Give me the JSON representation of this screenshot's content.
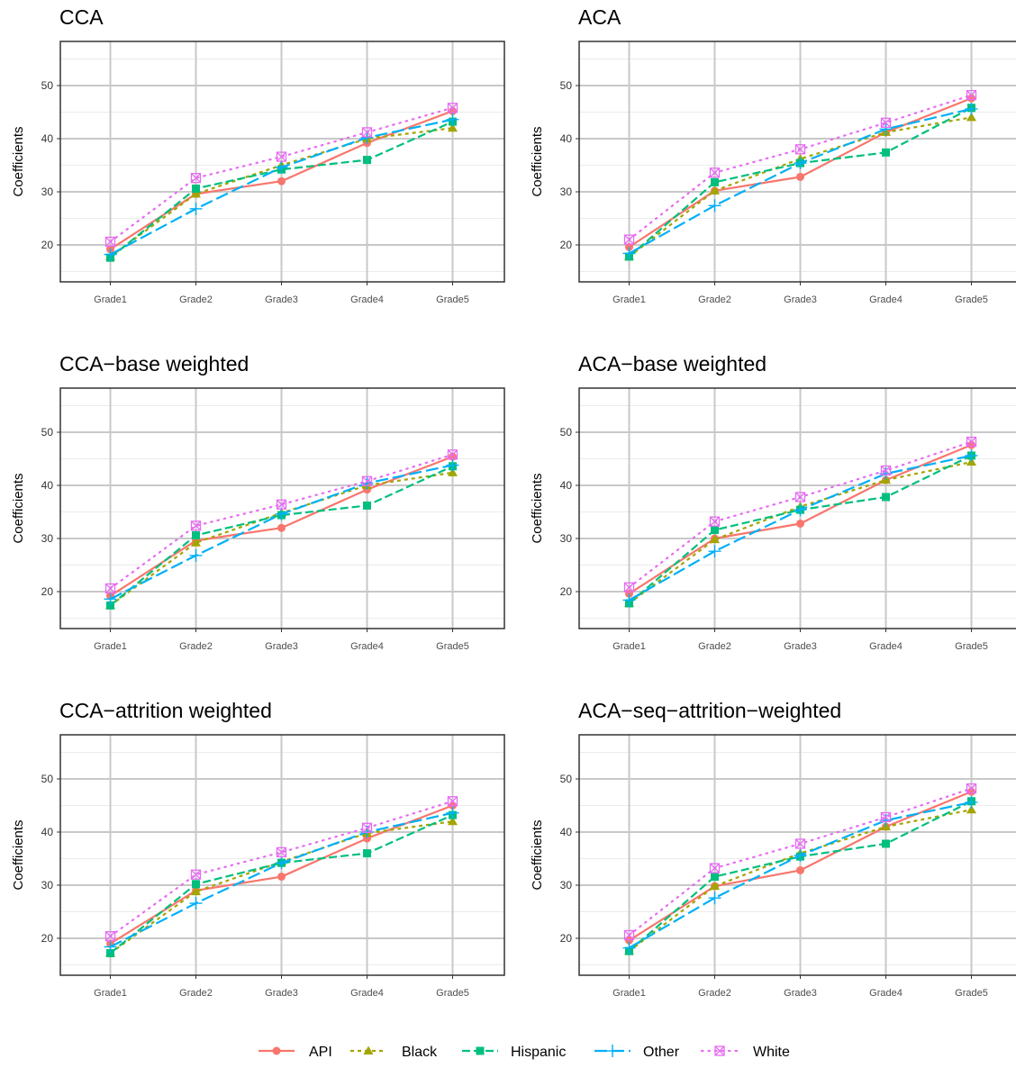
{
  "series_styles": [
    {
      "name": "API",
      "color": "#F8766D",
      "marker": "circle",
      "dash": ""
    },
    {
      "name": "Black",
      "color": "#A3A500",
      "marker": "triangle",
      "dash": "4,4"
    },
    {
      "name": "Hispanic",
      "color": "#00BF7D",
      "marker": "square",
      "dash": "9,4"
    },
    {
      "name": "Other",
      "color": "#00B0F6",
      "marker": "plus",
      "dash": "14,5"
    },
    {
      "name": "White",
      "color": "#E76BF3",
      "marker": "boxcross",
      "dash": "1.5,6"
    }
  ],
  "chart_data": [
    {
      "type": "line",
      "title": "CCA",
      "xlabel": "",
      "ylabel": "Coefficients",
      "categories": [
        "Grade1",
        "Grade2",
        "Grade3",
        "Grade4",
        "Grade5"
      ],
      "yticks": [
        20,
        30,
        40,
        50
      ],
      "ylim": [
        13,
        58
      ],
      "grid": true,
      "series": [
        {
          "name": "API",
          "values": [
            19.2,
            29.6,
            32.0,
            39.2,
            45.2
          ]
        },
        {
          "name": "Black",
          "values": [
            17.8,
            29.6,
            35.0,
            40.0,
            42.0
          ]
        },
        {
          "name": "Hispanic",
          "values": [
            17.6,
            30.6,
            34.2,
            36.0,
            43.2
          ]
        },
        {
          "name": "Other",
          "values": [
            18.2,
            26.8,
            34.6,
            40.2,
            43.6
          ]
        },
        {
          "name": "White",
          "values": [
            20.6,
            32.6,
            36.6,
            41.2,
            45.8
          ]
        }
      ]
    },
    {
      "type": "line",
      "title": "ACA",
      "xlabel": "",
      "ylabel": "Coefficients",
      "categories": [
        "Grade1",
        "Grade2",
        "Grade3",
        "Grade4",
        "Grade5"
      ],
      "yticks": [
        20,
        30,
        40,
        50
      ],
      "ylim": [
        13,
        58
      ],
      "grid": true,
      "series": [
        {
          "name": "API",
          "values": [
            19.6,
            30.2,
            32.8,
            41.2,
            47.6
          ]
        },
        {
          "name": "Black",
          "values": [
            17.8,
            30.2,
            36.2,
            41.2,
            44.0
          ]
        },
        {
          "name": "Hispanic",
          "values": [
            17.8,
            31.8,
            35.4,
            37.4,
            45.8
          ]
        },
        {
          "name": "Other",
          "values": [
            18.4,
            27.4,
            35.4,
            41.8,
            45.6
          ]
        },
        {
          "name": "White",
          "values": [
            21.0,
            33.6,
            38.0,
            43.0,
            48.2
          ]
        }
      ]
    },
    {
      "type": "line",
      "title": "CCA−base weighted",
      "xlabel": "",
      "ylabel": "Coefficients",
      "categories": [
        "Grade1",
        "Grade2",
        "Grade3",
        "Grade4",
        "Grade5"
      ],
      "yticks": [
        20,
        30,
        40,
        50
      ],
      "ylim": [
        13,
        58
      ],
      "grid": true,
      "series": [
        {
          "name": "API",
          "values": [
            19.2,
            29.6,
            32.0,
            39.2,
            45.4
          ]
        },
        {
          "name": "Black",
          "values": [
            17.4,
            29.2,
            34.8,
            40.0,
            42.4
          ]
        },
        {
          "name": "Hispanic",
          "values": [
            17.4,
            30.6,
            34.4,
            36.2,
            43.6
          ]
        },
        {
          "name": "Other",
          "values": [
            18.6,
            26.8,
            34.6,
            40.4,
            43.8
          ]
        },
        {
          "name": "White",
          "values": [
            20.6,
            32.4,
            36.4,
            40.8,
            45.8
          ]
        }
      ]
    },
    {
      "type": "line",
      "title": "ACA−base weighted",
      "xlabel": "",
      "ylabel": "Coefficients",
      "categories": [
        "Grade1",
        "Grade2",
        "Grade3",
        "Grade4",
        "Grade5"
      ],
      "yticks": [
        20,
        30,
        40,
        50
      ],
      "ylim": [
        13,
        58
      ],
      "grid": true,
      "series": [
        {
          "name": "API",
          "values": [
            19.6,
            30.0,
            32.8,
            41.0,
            47.6
          ]
        },
        {
          "name": "Black",
          "values": [
            17.8,
            29.8,
            36.0,
            41.0,
            44.4
          ]
        },
        {
          "name": "Hispanic",
          "values": [
            17.8,
            31.6,
            35.4,
            37.8,
            45.6
          ]
        },
        {
          "name": "Other",
          "values": [
            18.4,
            27.6,
            35.4,
            42.2,
            45.6
          ]
        },
        {
          "name": "White",
          "values": [
            20.8,
            33.2,
            37.8,
            42.8,
            48.2
          ]
        }
      ]
    },
    {
      "type": "line",
      "title": "CCA−attrition weighted",
      "xlabel": "",
      "ylabel": "Coefficients",
      "categories": [
        "Grade1",
        "Grade2",
        "Grade3",
        "Grade4",
        "Grade5"
      ],
      "yticks": [
        20,
        30,
        40,
        50
      ],
      "ylim": [
        13,
        58
      ],
      "grid": true,
      "series": [
        {
          "name": "API",
          "values": [
            19.0,
            29.0,
            31.6,
            38.8,
            45.0
          ]
        },
        {
          "name": "Black",
          "values": [
            17.2,
            28.8,
            34.4,
            39.8,
            42.0
          ]
        },
        {
          "name": "Hispanic",
          "values": [
            17.2,
            30.2,
            34.2,
            36.0,
            43.2
          ]
        },
        {
          "name": "Other",
          "values": [
            18.4,
            26.6,
            34.2,
            40.0,
            43.6
          ]
        },
        {
          "name": "White",
          "values": [
            20.4,
            32.0,
            36.2,
            40.8,
            45.8
          ]
        }
      ]
    },
    {
      "type": "line",
      "title": "ACA−seq−attrition−weighted",
      "xlabel": "",
      "ylabel": "Coefficients",
      "categories": [
        "Grade1",
        "Grade2",
        "Grade3",
        "Grade4",
        "Grade5"
      ],
      "yticks": [
        20,
        30,
        40,
        50
      ],
      "ylim": [
        13,
        58
      ],
      "grid": true,
      "series": [
        {
          "name": "API",
          "values": [
            19.6,
            29.8,
            32.8,
            41.0,
            47.6
          ]
        },
        {
          "name": "Black",
          "values": [
            17.6,
            29.8,
            36.0,
            41.0,
            44.2
          ]
        },
        {
          "name": "Hispanic",
          "values": [
            17.6,
            31.6,
            35.4,
            37.8,
            45.8
          ]
        },
        {
          "name": "Other",
          "values": [
            18.2,
            27.6,
            35.6,
            42.2,
            45.6
          ]
        },
        {
          "name": "White",
          "values": [
            20.6,
            33.2,
            37.8,
            42.8,
            48.2
          ]
        }
      ]
    }
  ],
  "legend": {
    "position": "bottom",
    "entries": [
      "API",
      "Black",
      "Hispanic",
      "Other",
      "White"
    ]
  }
}
